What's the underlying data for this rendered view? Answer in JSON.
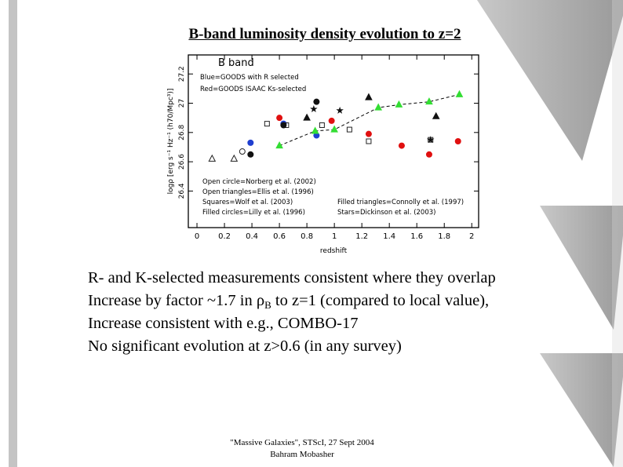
{
  "title": "B-band luminosity density evolution to z=2",
  "figure": {
    "chart_data": {
      "type": "scatter",
      "x_label": "redshift",
      "y_label": "logρ [erg s⁻¹ Hz⁻¹ (h70/Mpc³)]",
      "band_label": "B band",
      "notes": [
        "Blue=GOODS with R selected",
        "Red=GOODS ISAAC Ks-selected",
        "Open circle=Norberg et al. (2002)",
        "Open triangles=Ellis et al. (1996)",
        "Squares=Wolf et al. (2003)",
        "Filled circles=Lilly et al. (1996)",
        "Filled triangles=Connolly et al. (1997)",
        "Stars=Dickinson et al. (2003)"
      ],
      "xlim": [
        -0.063,
        2.05
      ],
      "xticks": [
        0,
        0.2,
        0.4,
        0.6,
        0.8,
        1,
        1.2,
        1.4,
        1.6,
        1.8,
        2
      ],
      "ylim": [
        26.15,
        27.33
      ],
      "yticks": [
        26.4,
        26.6,
        26.8,
        27,
        27.2
      ],
      "series": [
        {
          "color": "#1f3fd0",
          "marker": "circle",
          "x": [
            0.39,
            0.63,
            0.87
          ],
          "values": [
            26.73,
            26.86,
            26.78
          ]
        },
        {
          "color": "#e01010",
          "marker": "circle",
          "x": [
            0.6,
            0.98,
            1.25,
            1.49,
            1.69,
            1.9
          ],
          "values": [
            26.9,
            26.88,
            26.79,
            26.71,
            26.65,
            26.74
          ]
        },
        {
          "color": "#222222",
          "marker": "open-circle",
          "x": [
            0.33
          ],
          "values": [
            26.67
          ]
        },
        {
          "color": "#222222",
          "marker": "open-triangle",
          "x": [
            0.11,
            0.27
          ],
          "values": [
            26.62,
            26.62
          ]
        },
        {
          "color": "#222222",
          "marker": "open-square",
          "x": [
            0.51,
            0.65,
            0.91,
            1.11,
            1.25,
            1.7
          ],
          "values": [
            26.86,
            26.85,
            26.85,
            26.82,
            26.74,
            26.75
          ]
        },
        {
          "color": "#111111",
          "marker": "circle",
          "x": [
            0.39,
            0.63,
            0.87
          ],
          "values": [
            26.65,
            26.85,
            27.01
          ]
        },
        {
          "color": "#111111",
          "marker": "triangle",
          "x": [
            0.8,
            1.25,
            1.74
          ],
          "values": [
            26.9,
            27.04,
            26.91
          ]
        },
        {
          "color": "#111111",
          "marker": "star",
          "x": [
            0.85,
            1.04,
            1.7
          ],
          "values": [
            26.96,
            26.95,
            26.75
          ]
        },
        {
          "color": "#33dd33",
          "marker": "triangle",
          "line": "dashed",
          "x": [
            0.6,
            0.86,
            1.0,
            1.32,
            1.47,
            1.69,
            1.91
          ],
          "values": [
            26.71,
            26.81,
            26.82,
            26.97,
            26.99,
            27.01,
            27.06
          ]
        }
      ]
    }
  },
  "bullets": [
    [
      "R- and K-selected measurements consistent where they overlap"
    ],
    [
      "Increase by factor ~1.7 in ",
      "ρ",
      "B",
      " to z=1 (compared to local value),"
    ],
    [
      "Increase consistent with e.g., COMBO-17"
    ],
    [
      "No significant evolution at z>0.6 (in any survey)"
    ]
  ],
  "footer": [
    "\"Massive Galaxies\", STScI, 27 Sept 2004",
    "Bahram Mobasher"
  ]
}
